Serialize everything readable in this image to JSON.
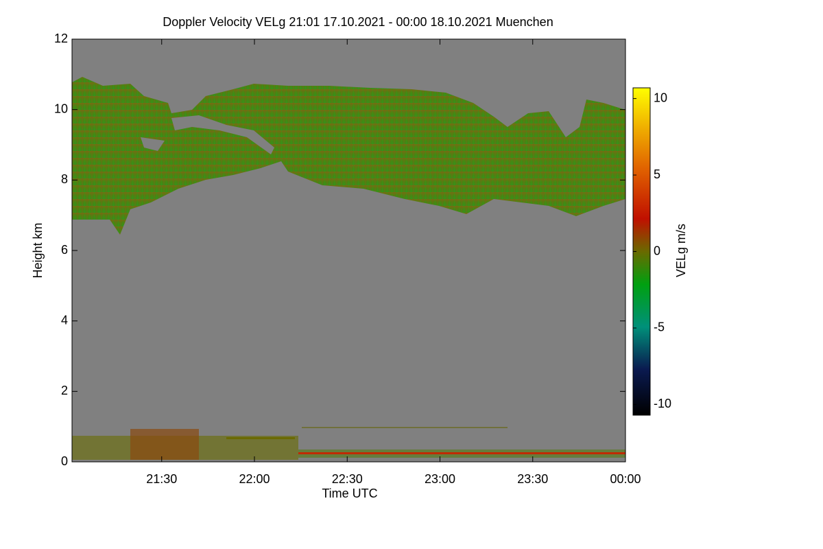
{
  "chart_data": {
    "type": "heatmap",
    "title": "Doppler Velocity VELg   21:01 17.10.2021 - 00:00 18.10.2021 Muenchen",
    "x_label": "Time UTC",
    "y_label": "Height km",
    "colorbar_label": "VELg m/s",
    "xlim": [
      "21:01",
      "00:00"
    ],
    "xticks": [
      "21:30",
      "22:00",
      "22:30",
      "23:00",
      "23:30",
      "00:00"
    ],
    "ylim": [
      0,
      12
    ],
    "yticks": [
      0,
      2,
      4,
      6,
      8,
      10,
      12
    ],
    "clim": [
      -10.7,
      10.7
    ],
    "cticks": [
      -10,
      -5,
      0,
      5,
      10
    ]
  }
}
